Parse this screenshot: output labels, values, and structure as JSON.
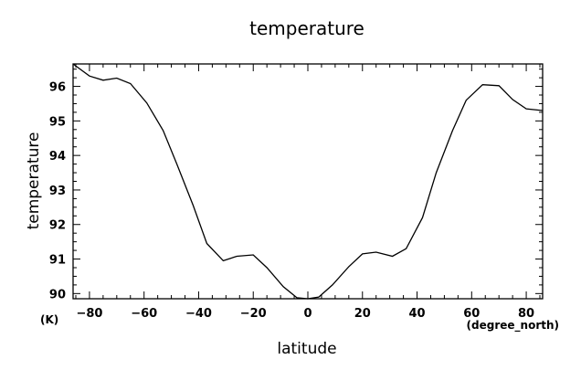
{
  "chart_data": {
    "type": "line",
    "title": "temperature",
    "xlabel": "latitude",
    "ylabel": "temperature",
    "xunit": "(degree_north)",
    "yunit": "(K)",
    "xlim": [
      -86,
      86
    ],
    "ylim": [
      89.85,
      96.65
    ],
    "x_major_ticks": [
      -80,
      -60,
      -40,
      -20,
      0,
      20,
      40,
      60,
      80
    ],
    "x_tick_labels": [
      "−80",
      "−60",
      "−40",
      "−20",
      "0",
      "20",
      "40",
      "60",
      "80"
    ],
    "y_major_ticks": [
      90,
      91,
      92,
      93,
      94,
      95,
      96
    ],
    "y_tick_labels": [
      "90",
      "91",
      "92",
      "93",
      "94",
      "95",
      "96"
    ],
    "x_minor_step": 5,
    "y_minor_step": 0.25,
    "grid": false,
    "line_color": "#000000",
    "series": [
      {
        "x": [
          -86,
          -80,
          -75,
          -70,
          -65,
          -59,
          -53,
          -48,
          -42,
          -37,
          -31,
          -26,
          -20,
          -15,
          -9,
          -4,
          0,
          4,
          9,
          15,
          20,
          25,
          31,
          36,
          42,
          47,
          53,
          58,
          64,
          70,
          75,
          80,
          86
        ],
        "values": [
          96.65,
          96.3,
          96.18,
          96.24,
          96.08,
          95.52,
          94.72,
          93.75,
          92.55,
          91.45,
          90.95,
          91.08,
          91.12,
          90.75,
          90.2,
          89.88,
          89.85,
          89.9,
          90.25,
          90.78,
          91.15,
          91.2,
          91.08,
          91.3,
          92.2,
          93.5,
          94.72,
          95.6,
          96.05,
          96.02,
          95.62,
          95.35,
          95.3
        ]
      }
    ]
  }
}
